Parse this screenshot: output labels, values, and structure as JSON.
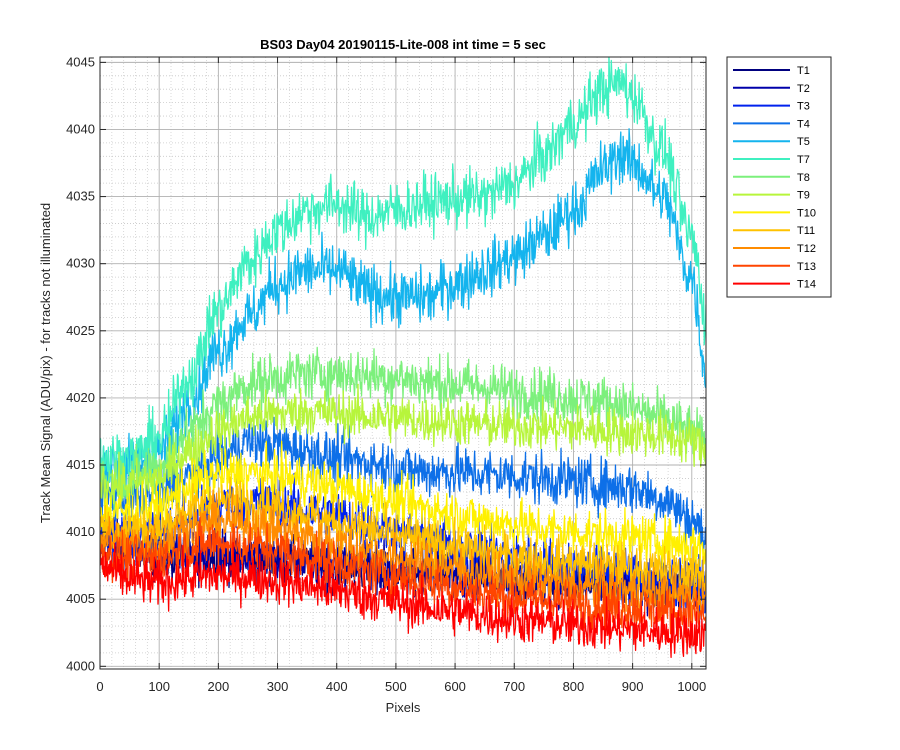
{
  "chart_data": {
    "type": "line",
    "title": "BS03 Day04 20190115-Lite-008 int time = 5 sec",
    "xlabel": "Pixels",
    "ylabel": "Track Mean Signal (ADU/pix) - for tracks not illuminated",
    "xlim": [
      0,
      1024
    ],
    "ylim": [
      3999.8,
      4045.4
    ],
    "xticks": [
      0,
      100,
      200,
      300,
      400,
      500,
      600,
      700,
      800,
      900,
      1000
    ],
    "yticks": [
      4000,
      4005,
      4010,
      4015,
      4020,
      4025,
      4030,
      4035,
      4040,
      4045
    ],
    "grid": "major and minor, dotted",
    "legend_position": "outside-right-top",
    "x_knots": [
      0,
      50,
      100,
      150,
      200,
      250,
      300,
      350,
      400,
      450,
      500,
      550,
      600,
      650,
      700,
      750,
      800,
      850,
      880,
      900,
      950,
      1000,
      1024
    ],
    "series": [
      {
        "name": "T1",
        "color": "#00007F",
        "noise": 2.0,
        "values": [
          4009.5,
          4008.8,
          4008.0,
          4008.0,
          4008.2,
          4008.0,
          4007.8,
          4007.6,
          4007.4,
          4007.2,
          4007.0,
          4006.9,
          4006.8,
          4006.6,
          4006.5,
          4006.4,
          4006.3,
          4006.2,
          4006.2,
          4006.1,
          4006.0,
          4005.9,
          4005.8
        ]
      },
      {
        "name": "T2",
        "color": "#0000AA",
        "noise": 2.0,
        "values": [
          4009.8,
          4009.2,
          4008.6,
          4008.5,
          4008.6,
          4008.4,
          4008.2,
          4008.0,
          4007.8,
          4007.6,
          4007.4,
          4007.2,
          4007.0,
          4006.8,
          4006.6,
          4006.4,
          4006.3,
          4006.2,
          4006.1,
          4006.0,
          4005.9,
          4005.8,
          4005.7
        ]
      },
      {
        "name": "T3",
        "color": "#0022EE",
        "noise": 2.2,
        "values": [
          4010.0,
          4009.8,
          4009.8,
          4011.0,
          4012.0,
          4012.3,
          4012.0,
          4011.6,
          4011.2,
          4010.6,
          4010.0,
          4009.5,
          4009.0,
          4008.6,
          4008.2,
          4007.8,
          4007.4,
          4007.2,
          4007.0,
          4006.8,
          4006.5,
          4006.2,
          4006.0
        ]
      },
      {
        "name": "T4",
        "color": "#0D6FE8",
        "noise": 2.2,
        "values": [
          4013.0,
          4012.5,
          4012.8,
          4014.2,
          4015.5,
          4016.8,
          4016.5,
          4016.0,
          4015.5,
          4015.2,
          4014.8,
          4014.5,
          4014.5,
          4014.3,
          4014.2,
          4014.0,
          4013.8,
          4013.5,
          4013.4,
          4013.3,
          4012.5,
          4011.0,
          4009.5
        ]
      },
      {
        "name": "T5",
        "color": "#14B4EE",
        "noise": 2.4,
        "values": [
          4015.0,
          4015.0,
          4016.0,
          4019.5,
          4023.5,
          4026.0,
          4028.5,
          4029.5,
          4029.5,
          4028.0,
          4027.5,
          4027.5,
          4028.5,
          4029.5,
          4030.5,
          4032.0,
          4034.0,
          4037.0,
          4038.2,
          4037.5,
          4035.0,
          4029.0,
          4022.0
        ]
      },
      {
        "name": "T7",
        "color": "#3FF0C0",
        "noise": 2.4,
        "values": [
          4015.5,
          4015.5,
          4017.0,
          4021.5,
          4026.5,
          4030.0,
          4032.5,
          4034.0,
          4034.5,
          4033.5,
          4034.0,
          4034.5,
          4034.8,
          4035.0,
          4036.0,
          4038.0,
          4040.5,
          4043.0,
          4043.5,
          4042.5,
          4038.5,
          4032.0,
          4026.0
        ]
      },
      {
        "name": "T8",
        "color": "#7CF07C",
        "noise": 2.2,
        "values": [
          4014.0,
          4014.0,
          4015.0,
          4017.5,
          4019.5,
          4021.0,
          4021.5,
          4021.8,
          4021.8,
          4021.7,
          4021.5,
          4021.2,
          4021.0,
          4020.8,
          4020.5,
          4020.3,
          4020.0,
          4019.7,
          4019.5,
          4019.2,
          4018.5,
          4017.5,
          4016.5
        ]
      },
      {
        "name": "T9",
        "color": "#B7F53B",
        "noise": 2.0,
        "values": [
          4013.5,
          4013.5,
          4014.0,
          4016.0,
          4017.5,
          4018.5,
          4018.8,
          4019.0,
          4018.8,
          4018.6,
          4018.5,
          4018.3,
          4018.2,
          4018.0,
          4017.9,
          4017.8,
          4017.7,
          4017.6,
          4017.5,
          4017.4,
          4017.2,
          4016.8,
          4016.0
        ]
      },
      {
        "name": "T10",
        "color": "#FFF000",
        "noise": 2.0,
        "values": [
          4011.5,
          4011.5,
          4011.8,
          4013.5,
          4014.3,
          4014.4,
          4014.2,
          4013.8,
          4013.3,
          4012.8,
          4012.3,
          4011.8,
          4011.3,
          4010.9,
          4010.6,
          4010.2,
          4010.0,
          4009.8,
          4009.7,
          4009.6,
          4009.3,
          4009.0,
          4008.7
        ]
      },
      {
        "name": "T11",
        "color": "#FFC200",
        "noise": 2.0,
        "values": [
          4010.5,
          4010.2,
          4010.3,
          4011.6,
          4012.3,
          4012.2,
          4011.8,
          4011.3,
          4010.7,
          4010.2,
          4009.7,
          4009.3,
          4008.9,
          4008.5,
          4008.2,
          4007.9,
          4007.7,
          4007.5,
          4007.4,
          4007.3,
          4007.1,
          4006.9,
          4006.7
        ]
      },
      {
        "name": "T12",
        "color": "#FF8C00",
        "noise": 2.0,
        "values": [
          4009.5,
          4009.0,
          4009.2,
          4010.2,
          4010.8,
          4010.6,
          4010.2,
          4009.7,
          4009.1,
          4008.6,
          4008.1,
          4007.7,
          4007.3,
          4006.9,
          4006.5,
          4006.2,
          4006.0,
          4005.8,
          4005.7,
          4005.6,
          4005.4,
          4005.2,
          4005.0
        ]
      },
      {
        "name": "T13",
        "color": "#FF4500",
        "noise": 2.0,
        "values": [
          4008.5,
          4008.0,
          4008.0,
          4008.8,
          4009.2,
          4009.0,
          4008.6,
          4008.1,
          4007.6,
          4007.1,
          4006.7,
          4006.3,
          4005.9,
          4005.5,
          4005.2,
          4004.9,
          4004.7,
          4004.5,
          4004.4,
          4004.3,
          4004.1,
          4003.9,
          4003.7
        ]
      },
      {
        "name": "T14",
        "color": "#FF0000",
        "noise": 2.0,
        "values": [
          4007.5,
          4006.5,
          4006.2,
          4006.6,
          4006.8,
          4006.7,
          4006.4,
          4006.0,
          4005.6,
          4005.2,
          4004.8,
          4004.4,
          4004.1,
          4003.8,
          4003.5,
          4003.3,
          4003.1,
          4002.9,
          4002.8,
          4002.7,
          4002.6,
          4002.5,
          4002.4
        ]
      }
    ]
  }
}
